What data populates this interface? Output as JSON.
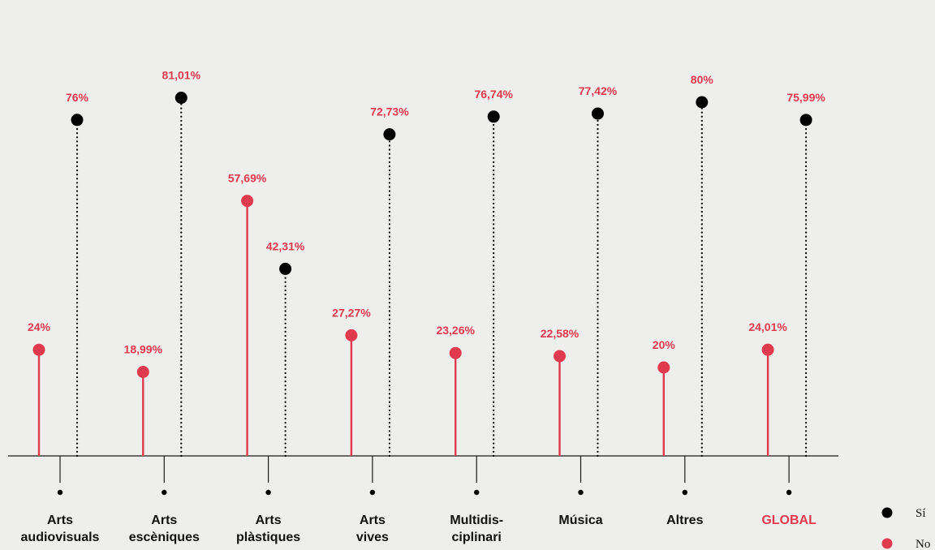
{
  "chart_data": {
    "type": "lollipop",
    "categories": [
      [
        "Arts",
        "audiovisuals"
      ],
      [
        "Arts",
        "escèniques"
      ],
      [
        "Arts",
        "plàstiques"
      ],
      [
        "Arts",
        "vives"
      ],
      [
        "Multidis-",
        "ciplinari"
      ],
      [
        "Música"
      ],
      [
        "Altres"
      ],
      [
        "GLOBAL"
      ]
    ],
    "highlight_category": "GLOBAL",
    "series": [
      {
        "name": "No",
        "color": "#e03a4e",
        "style": "solid",
        "values": [
          24,
          18.99,
          57.69,
          27.27,
          23.26,
          22.58,
          20,
          24.01
        ],
        "labels": [
          "24%",
          "18,99%",
          "57,69%",
          "27,27%",
          "23,26%",
          "22,58%",
          "20%",
          "24,01%"
        ]
      },
      {
        "name": "Sí",
        "color": "#000000",
        "style": "dotted",
        "values": [
          76,
          81.01,
          42.31,
          72.73,
          76.74,
          77.42,
          80,
          75.99
        ],
        "labels": [
          "76%",
          "81,01%",
          "42,31%",
          "72,73%",
          "76,74%",
          "77,42%",
          "80%",
          "75,99%"
        ]
      }
    ],
    "value_label_color": "#e03a4e",
    "ylim": [
      0,
      100
    ],
    "legend": [
      {
        "name": "Sí",
        "color": "#000000"
      },
      {
        "name": "No",
        "color": "#e03a4e"
      }
    ],
    "legend_position": "bottom-right",
    "grid": false
  }
}
